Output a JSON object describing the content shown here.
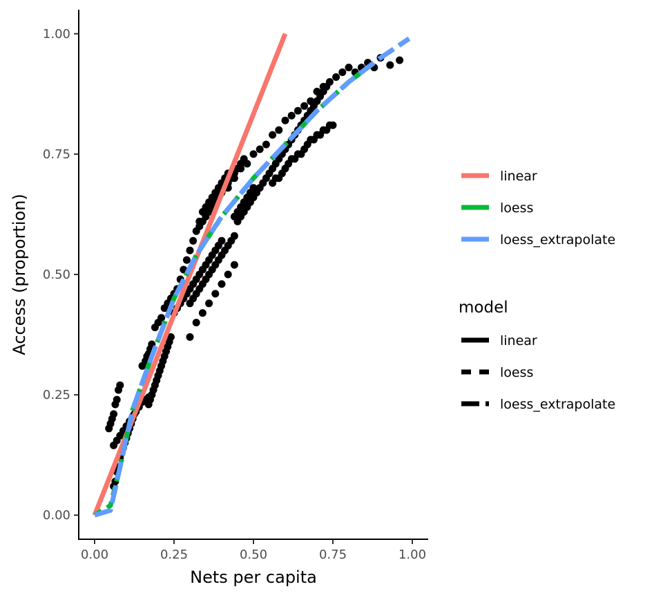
{
  "chart_data": {
    "type": "scatter",
    "xlabel": "Nets per capita",
    "ylabel": "Access (proportion)",
    "xlim": [
      -0.05,
      1.05
    ],
    "ylim": [
      -0.05,
      1.05
    ],
    "x_ticks": [
      0,
      0.25,
      0.5,
      0.75,
      1.0
    ],
    "x_tick_labels": [
      "0.00",
      "0.25",
      "0.50",
      "0.75",
      "1.00"
    ],
    "y_ticks": [
      0,
      0.25,
      0.5,
      0.75,
      1.0
    ],
    "y_tick_labels": [
      "0.00",
      "0.25",
      "0.50",
      "0.75",
      "1.00"
    ],
    "grid": false,
    "points": [
      [
        0.045,
        0.18
      ],
      [
        0.05,
        0.19
      ],
      [
        0.055,
        0.2
      ],
      [
        0.06,
        0.21
      ],
      [
        0.065,
        0.23
      ],
      [
        0.07,
        0.24
      ],
      [
        0.075,
        0.26
      ],
      [
        0.08,
        0.27
      ],
      [
        0.06,
        0.06
      ],
      [
        0.065,
        0.07
      ],
      [
        0.07,
        0.09
      ],
      [
        0.075,
        0.1
      ],
      [
        0.08,
        0.12
      ],
      [
        0.085,
        0.13
      ],
      [
        0.09,
        0.14
      ],
      [
        0.095,
        0.15
      ],
      [
        0.1,
        0.16
      ],
      [
        0.105,
        0.17
      ],
      [
        0.11,
        0.18
      ],
      [
        0.115,
        0.19
      ],
      [
        0.12,
        0.2
      ],
      [
        0.125,
        0.21
      ],
      [
        0.13,
        0.22
      ],
      [
        0.135,
        0.23
      ],
      [
        0.14,
        0.24
      ],
      [
        0.145,
        0.25
      ],
      [
        0.06,
        0.145
      ],
      [
        0.07,
        0.155
      ],
      [
        0.08,
        0.165
      ],
      [
        0.09,
        0.175
      ],
      [
        0.1,
        0.185
      ],
      [
        0.11,
        0.195
      ],
      [
        0.12,
        0.205
      ],
      [
        0.13,
        0.215
      ],
      [
        0.14,
        0.225
      ],
      [
        0.15,
        0.235
      ],
      [
        0.16,
        0.24
      ],
      [
        0.17,
        0.245
      ],
      [
        0.18,
        0.25
      ],
      [
        0.15,
        0.31
      ],
      [
        0.16,
        0.32
      ],
      [
        0.165,
        0.33
      ],
      [
        0.17,
        0.335
      ],
      [
        0.175,
        0.345
      ],
      [
        0.18,
        0.355
      ],
      [
        0.17,
        0.23
      ],
      [
        0.175,
        0.24
      ],
      [
        0.18,
        0.25
      ],
      [
        0.185,
        0.26
      ],
      [
        0.19,
        0.27
      ],
      [
        0.195,
        0.28
      ],
      [
        0.2,
        0.29
      ],
      [
        0.205,
        0.3
      ],
      [
        0.21,
        0.31
      ],
      [
        0.215,
        0.32
      ],
      [
        0.22,
        0.33
      ],
      [
        0.225,
        0.34
      ],
      [
        0.23,
        0.35
      ],
      [
        0.235,
        0.36
      ],
      [
        0.24,
        0.37
      ],
      [
        0.19,
        0.39
      ],
      [
        0.2,
        0.4
      ],
      [
        0.21,
        0.41
      ],
      [
        0.22,
        0.43
      ],
      [
        0.23,
        0.44
      ],
      [
        0.24,
        0.45
      ],
      [
        0.25,
        0.46
      ],
      [
        0.26,
        0.47
      ],
      [
        0.27,
        0.49
      ],
      [
        0.28,
        0.51
      ],
      [
        0.29,
        0.53
      ],
      [
        0.3,
        0.55
      ],
      [
        0.31,
        0.57
      ],
      [
        0.32,
        0.59
      ],
      [
        0.33,
        0.61
      ],
      [
        0.34,
        0.63
      ],
      [
        0.35,
        0.64
      ],
      [
        0.36,
        0.65
      ],
      [
        0.37,
        0.66
      ],
      [
        0.38,
        0.67
      ],
      [
        0.39,
        0.68
      ],
      [
        0.4,
        0.69
      ],
      [
        0.41,
        0.7
      ],
      [
        0.42,
        0.71
      ],
      [
        0.25,
        0.42
      ],
      [
        0.26,
        0.43
      ],
      [
        0.27,
        0.44
      ],
      [
        0.28,
        0.45
      ],
      [
        0.29,
        0.46
      ],
      [
        0.3,
        0.47
      ],
      [
        0.31,
        0.48
      ],
      [
        0.32,
        0.49
      ],
      [
        0.33,
        0.5
      ],
      [
        0.34,
        0.51
      ],
      [
        0.35,
        0.52
      ],
      [
        0.36,
        0.53
      ],
      [
        0.37,
        0.54
      ],
      [
        0.38,
        0.55
      ],
      [
        0.39,
        0.56
      ],
      [
        0.4,
        0.57
      ],
      [
        0.3,
        0.44
      ],
      [
        0.31,
        0.45
      ],
      [
        0.32,
        0.46
      ],
      [
        0.33,
        0.47
      ],
      [
        0.34,
        0.48
      ],
      [
        0.35,
        0.49
      ],
      [
        0.36,
        0.5
      ],
      [
        0.37,
        0.51
      ],
      [
        0.38,
        0.52
      ],
      [
        0.39,
        0.53
      ],
      [
        0.4,
        0.54
      ],
      [
        0.41,
        0.55
      ],
      [
        0.42,
        0.56
      ],
      [
        0.43,
        0.57
      ],
      [
        0.44,
        0.58
      ],
      [
        0.45,
        0.61
      ],
      [
        0.46,
        0.62
      ],
      [
        0.47,
        0.63
      ],
      [
        0.48,
        0.64
      ],
      [
        0.49,
        0.65
      ],
      [
        0.5,
        0.66
      ],
      [
        0.51,
        0.67
      ],
      [
        0.52,
        0.68
      ],
      [
        0.53,
        0.69
      ],
      [
        0.54,
        0.7
      ],
      [
        0.55,
        0.71
      ],
      [
        0.56,
        0.72
      ],
      [
        0.57,
        0.73
      ],
      [
        0.58,
        0.74
      ],
      [
        0.59,
        0.75
      ],
      [
        0.6,
        0.76
      ],
      [
        0.61,
        0.77
      ],
      [
        0.62,
        0.78
      ],
      [
        0.63,
        0.79
      ],
      [
        0.64,
        0.8
      ],
      [
        0.65,
        0.81
      ],
      [
        0.66,
        0.82
      ],
      [
        0.67,
        0.83
      ],
      [
        0.68,
        0.84
      ],
      [
        0.69,
        0.85
      ],
      [
        0.7,
        0.86
      ],
      [
        0.71,
        0.87
      ],
      [
        0.72,
        0.88
      ],
      [
        0.73,
        0.89
      ],
      [
        0.56,
        0.69
      ],
      [
        0.57,
        0.7
      ],
      [
        0.58,
        0.7
      ],
      [
        0.59,
        0.71
      ],
      [
        0.6,
        0.72
      ],
      [
        0.61,
        0.73
      ],
      [
        0.62,
        0.74
      ],
      [
        0.63,
        0.74
      ],
      [
        0.64,
        0.75
      ],
      [
        0.65,
        0.75
      ],
      [
        0.66,
        0.76
      ],
      [
        0.67,
        0.77
      ],
      [
        0.68,
        0.78
      ],
      [
        0.69,
        0.78
      ],
      [
        0.7,
        0.79
      ],
      [
        0.71,
        0.79
      ],
      [
        0.72,
        0.8
      ],
      [
        0.73,
        0.8
      ],
      [
        0.74,
        0.81
      ],
      [
        0.75,
        0.81
      ],
      [
        0.42,
        0.68
      ],
      [
        0.44,
        0.7
      ],
      [
        0.46,
        0.72
      ],
      [
        0.48,
        0.73
      ],
      [
        0.5,
        0.75
      ],
      [
        0.52,
        0.76
      ],
      [
        0.54,
        0.77
      ],
      [
        0.56,
        0.79
      ],
      [
        0.58,
        0.8
      ],
      [
        0.6,
        0.82
      ],
      [
        0.62,
        0.83
      ],
      [
        0.64,
        0.84
      ],
      [
        0.66,
        0.85
      ],
      [
        0.68,
        0.86
      ],
      [
        0.7,
        0.88
      ],
      [
        0.72,
        0.89
      ],
      [
        0.74,
        0.9
      ],
      [
        0.76,
        0.91
      ],
      [
        0.78,
        0.92
      ],
      [
        0.8,
        0.93
      ],
      [
        0.82,
        0.92
      ],
      [
        0.84,
        0.93
      ],
      [
        0.86,
        0.94
      ],
      [
        0.88,
        0.93
      ],
      [
        0.9,
        0.95
      ],
      [
        0.93,
        0.935
      ],
      [
        0.96,
        0.945
      ],
      [
        0.33,
        0.6
      ],
      [
        0.34,
        0.61
      ],
      [
        0.35,
        0.62
      ],
      [
        0.36,
        0.63
      ],
      [
        0.37,
        0.64
      ],
      [
        0.38,
        0.65
      ],
      [
        0.39,
        0.66
      ],
      [
        0.4,
        0.67
      ],
      [
        0.41,
        0.68
      ],
      [
        0.42,
        0.69
      ],
      [
        0.43,
        0.7
      ],
      [
        0.44,
        0.71
      ],
      [
        0.45,
        0.72
      ],
      [
        0.46,
        0.73
      ],
      [
        0.47,
        0.74
      ],
      [
        0.44,
        0.62
      ],
      [
        0.45,
        0.63
      ],
      [
        0.46,
        0.64
      ],
      [
        0.47,
        0.65
      ],
      [
        0.48,
        0.66
      ],
      [
        0.49,
        0.67
      ],
      [
        0.5,
        0.68
      ],
      [
        0.3,
        0.37
      ],
      [
        0.32,
        0.4
      ],
      [
        0.34,
        0.42
      ],
      [
        0.36,
        0.44
      ],
      [
        0.38,
        0.46
      ],
      [
        0.4,
        0.48
      ],
      [
        0.42,
        0.5
      ],
      [
        0.44,
        0.52
      ]
    ],
    "series": [
      {
        "name": "linear",
        "color": "#F8766D",
        "dash": "solid",
        "x": [
          0.0,
          0.6
        ],
        "y": [
          0.0,
          1.0
        ]
      },
      {
        "name": "loess",
        "color": "#00BA38",
        "dash": "dashed",
        "x": [
          0.0,
          0.05,
          0.08,
          0.12,
          0.18,
          0.25,
          0.32,
          0.4,
          0.5,
          0.6,
          0.7,
          0.8,
          0.88
        ],
        "y": [
          0.0,
          0.02,
          0.1,
          0.22,
          0.33,
          0.45,
          0.54,
          0.62,
          0.7,
          0.77,
          0.84,
          0.9,
          0.94
        ]
      },
      {
        "name": "loess_extrapolate",
        "color": "#619CFF",
        "dash": "longdash",
        "x": [
          0.0,
          0.05,
          0.08,
          0.12,
          0.18,
          0.25,
          0.32,
          0.4,
          0.5,
          0.6,
          0.7,
          0.8,
          0.9,
          0.99
        ],
        "y": [
          0.0,
          0.01,
          0.1,
          0.22,
          0.33,
          0.45,
          0.54,
          0.62,
          0.7,
          0.77,
          0.84,
          0.9,
          0.95,
          0.99
        ]
      }
    ],
    "legends": [
      {
        "title": "",
        "items": [
          {
            "label": "linear",
            "color": "#F8766D",
            "dash": "solid"
          },
          {
            "label": "loess",
            "color": "#00BA38",
            "dash": "solid"
          },
          {
            "label": "loess_extrapolate",
            "color": "#619CFF",
            "dash": "solid"
          }
        ]
      },
      {
        "title": "model",
        "items": [
          {
            "label": "linear",
            "color": "#000000",
            "dash": "solid"
          },
          {
            "label": "loess",
            "color": "#000000",
            "dash": "dashed"
          },
          {
            "label": "loess_extrapolate",
            "color": "#000000",
            "dash": "longdash"
          }
        ]
      }
    ],
    "legend_position": "right"
  }
}
